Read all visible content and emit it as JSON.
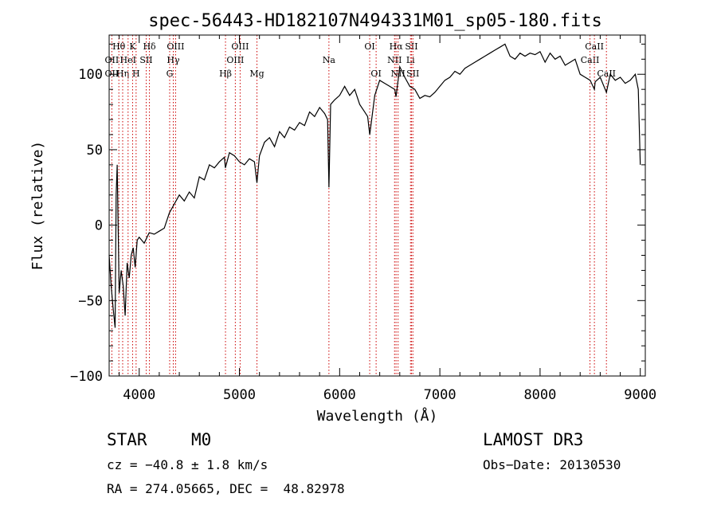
{
  "chart_data": {
    "type": "line",
    "title": "spec-56443-HD182107N494331M01_sp05-180.fits",
    "xlabel": "Wavelength (Å)",
    "ylabel": "Flux (relative)",
    "xlim": [
      3700,
      9050
    ],
    "ylim": [
      -100,
      126
    ],
    "xticks": [
      4000,
      5000,
      6000,
      7000,
      8000,
      9000
    ],
    "yticks": [
      -100,
      -50,
      0,
      50,
      100
    ],
    "grid": false,
    "series": [
      {
        "name": "flux",
        "x": [
          3700,
          3720,
          3740,
          3760,
          3770,
          3780,
          3800,
          3820,
          3840,
          3860,
          3880,
          3900,
          3920,
          3940,
          3960,
          3980,
          4000,
          4050,
          4100,
          4150,
          4200,
          4250,
          4300,
          4350,
          4400,
          4450,
          4500,
          4550,
          4600,
          4650,
          4700,
          4750,
          4800,
          4850,
          4860,
          4900,
          4950,
          5000,
          5050,
          5100,
          5150,
          5175,
          5200,
          5250,
          5300,
          5350,
          5400,
          5450,
          5500,
          5550,
          5600,
          5650,
          5700,
          5750,
          5800,
          5850,
          5880,
          5893,
          5910,
          5950,
          6000,
          6050,
          6100,
          6150,
          6200,
          6250,
          6280,
          6300,
          6350,
          6400,
          6450,
          6500,
          6550,
          6563,
          6600,
          6650,
          6700,
          6750,
          6800,
          6850,
          6900,
          6950,
          7000,
          7050,
          7100,
          7150,
          7200,
          7250,
          7300,
          7350,
          7400,
          7450,
          7500,
          7550,
          7600,
          7650,
          7700,
          7750,
          7800,
          7850,
          7900,
          7950,
          8000,
          8050,
          8100,
          8150,
          8200,
          8250,
          8300,
          8350,
          8400,
          8450,
          8500,
          8542,
          8550,
          8600,
          8662,
          8700,
          8750,
          8800,
          8850,
          8900,
          8950,
          8980,
          9000
        ],
        "y": [
          -20,
          -40,
          -55,
          -68,
          20,
          40,
          -45,
          -30,
          -40,
          -60,
          -25,
          -35,
          -20,
          -15,
          -28,
          -10,
          -8,
          -12,
          -5,
          -6,
          -4,
          -2,
          8,
          14,
          20,
          16,
          22,
          18,
          32,
          30,
          40,
          38,
          42,
          45,
          38,
          48,
          46,
          42,
          40,
          44,
          42,
          28,
          46,
          55,
          58,
          52,
          62,
          58,
          65,
          63,
          68,
          66,
          75,
          72,
          78,
          74,
          70,
          25,
          80,
          83,
          86,
          92,
          86,
          90,
          80,
          75,
          72,
          60,
          86,
          96,
          94,
          92,
          90,
          85,
          105,
          98,
          92,
          90,
          84,
          86,
          85,
          88,
          92,
          96,
          98,
          102,
          100,
          104,
          106,
          108,
          110,
          112,
          114,
          116,
          118,
          120,
          112,
          110,
          114,
          112,
          114,
          113,
          115,
          108,
          114,
          110,
          112,
          106,
          108,
          110,
          100,
          98,
          96,
          90,
          95,
          98,
          88,
          100,
          96,
          98,
          94,
          96,
          100,
          90,
          40
        ]
      }
    ],
    "line_markers": [
      {
        "wave": 3797,
        "labels": [
          {
            "text": "Hθ",
            "row": 1
          }
        ]
      },
      {
        "wave": 3727,
        "labels": [
          {
            "text": "OII",
            "row": 2
          },
          {
            "text": "OII",
            "row": 3
          }
        ]
      },
      {
        "wave": 3835,
        "labels": [
          {
            "text": "Hη",
            "row": 3
          }
        ]
      },
      {
        "wave": 3889,
        "labels": [
          {
            "text": "HeI",
            "row": 2
          }
        ]
      },
      {
        "wave": 3934,
        "labels": [
          {
            "text": "K",
            "row": 1
          }
        ]
      },
      {
        "wave": 3969,
        "labels": [
          {
            "text": "H",
            "row": 3
          }
        ]
      },
      {
        "wave": 4070,
        "labels": [
          {
            "text": "SII",
            "row": 2
          }
        ]
      },
      {
        "wave": 4102,
        "labels": [
          {
            "text": "Hδ",
            "row": 1
          }
        ]
      },
      {
        "wave": 4304,
        "labels": [
          {
            "text": "G",
            "row": 3
          }
        ]
      },
      {
        "wave": 4340,
        "labels": [
          {
            "text": "Hγ",
            "row": 2
          }
        ]
      },
      {
        "wave": 4363,
        "labels": [
          {
            "text": "OIII",
            "row": 1
          }
        ]
      },
      {
        "wave": 4861,
        "labels": [
          {
            "text": "Hβ",
            "row": 3
          }
        ]
      },
      {
        "wave": 4959,
        "labels": [
          {
            "text": "OIII",
            "row": 2
          }
        ]
      },
      {
        "wave": 5007,
        "labels": [
          {
            "text": "OIII",
            "row": 1
          }
        ]
      },
      {
        "wave": 5175,
        "labels": [
          {
            "text": "Mg",
            "row": 3
          }
        ]
      },
      {
        "wave": 5893,
        "labels": [
          {
            "text": "Na",
            "row": 2
          }
        ]
      },
      {
        "wave": 6300,
        "labels": [
          {
            "text": "OI",
            "row": 1
          }
        ]
      },
      {
        "wave": 6364,
        "labels": [
          {
            "text": "OI",
            "row": 3
          }
        ]
      },
      {
        "wave": 6548,
        "labels": [
          {
            "text": "NII",
            "row": 2
          }
        ]
      },
      {
        "wave": 6563,
        "labels": [
          {
            "text": "Hα",
            "row": 1
          }
        ]
      },
      {
        "wave": 6583,
        "labels": [
          {
            "text": "NII",
            "row": 3
          }
        ]
      },
      {
        "wave": 6707,
        "labels": [
          {
            "text": "Li",
            "row": 2
          }
        ]
      },
      {
        "wave": 6717,
        "labels": [
          {
            "text": "SII",
            "row": 1
          }
        ]
      },
      {
        "wave": 6731,
        "labels": [
          {
            "text": "SII",
            "row": 3
          }
        ]
      },
      {
        "wave": 8498,
        "labels": [
          {
            "text": "CaII",
            "row": 2
          }
        ]
      },
      {
        "wave": 8542,
        "labels": [
          {
            "text": "CaII",
            "row": 1
          }
        ]
      },
      {
        "wave": 8662,
        "labels": [
          {
            "text": "CaII",
            "row": 3
          }
        ]
      }
    ]
  },
  "info": {
    "object_class": "STAR",
    "subclass": "M0",
    "survey": "LAMOST DR3",
    "cz": "cz = −40.8 ± 1.8 km/s",
    "obs_date": "Obs−Date: 20130530",
    "radec": "RA = 274.05665, DEC =  48.82978"
  },
  "colors": {
    "line_marker": "#cc0000",
    "spectrum": "#000000"
  }
}
